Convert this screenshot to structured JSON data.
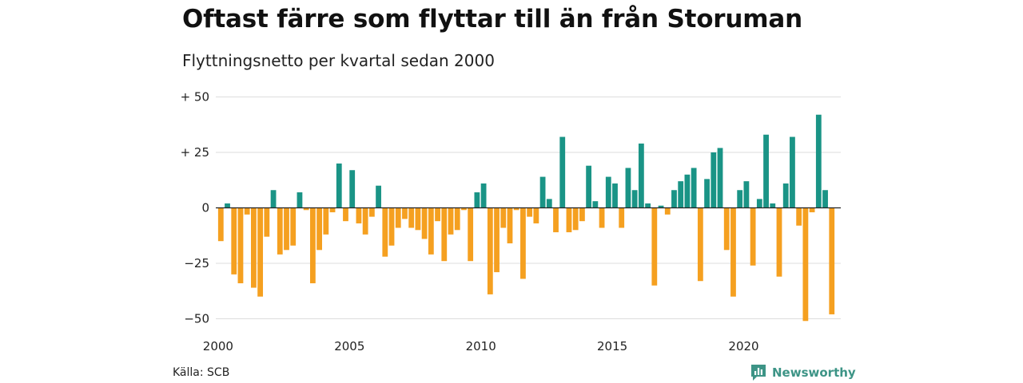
{
  "title": "Oftast färre som flyttar till än från Storuman",
  "subtitle": "Flyttningsnetto per kvartal sedan 2000",
  "source": "Källa: SCB",
  "brand": "Newsworthy",
  "colors": {
    "positive": "#1a9486",
    "negative": "#f5a020",
    "grid": "#dddddd",
    "zero": "#222222"
  },
  "chart_data": {
    "type": "bar",
    "x_start": "2000 Q1",
    "x_ticks": [
      "2000",
      "2005",
      "2010",
      "2015",
      "2020"
    ],
    "y_ticks": [
      "+ 50",
      "+ 25",
      "0",
      "−25",
      "−50"
    ],
    "y_tick_values": [
      50,
      25,
      0,
      -25,
      -50
    ],
    "ylim": [
      -52,
      50
    ],
    "grid": true,
    "values": [
      -15,
      2,
      -30,
      -34,
      -3,
      -36,
      -40,
      -13,
      8,
      -21,
      -19,
      -17,
      7,
      -1,
      -34,
      -19,
      -12,
      -2,
      20,
      -6,
      17,
      -7,
      -12,
      -4,
      10,
      -22,
      -17,
      -9,
      -5,
      -9,
      -10,
      -14,
      -21,
      -6,
      -24,
      -12,
      -10,
      -1,
      -24,
      7,
      11,
      -39,
      -29,
      -9,
      -16,
      -1,
      -32,
      -4,
      -7,
      14,
      4,
      -11,
      32,
      -11,
      -10,
      -6,
      19,
      3,
      -9,
      14,
      11,
      -9,
      18,
      8,
      29,
      2,
      -35,
      1,
      -3,
      8,
      12,
      15,
      18,
      -33,
      13,
      25,
      27,
      -19,
      -40,
      8,
      12,
      -26,
      4,
      33,
      2,
      -31,
      11,
      32,
      -8,
      -51,
      -2,
      42,
      8,
      -48
    ]
  }
}
